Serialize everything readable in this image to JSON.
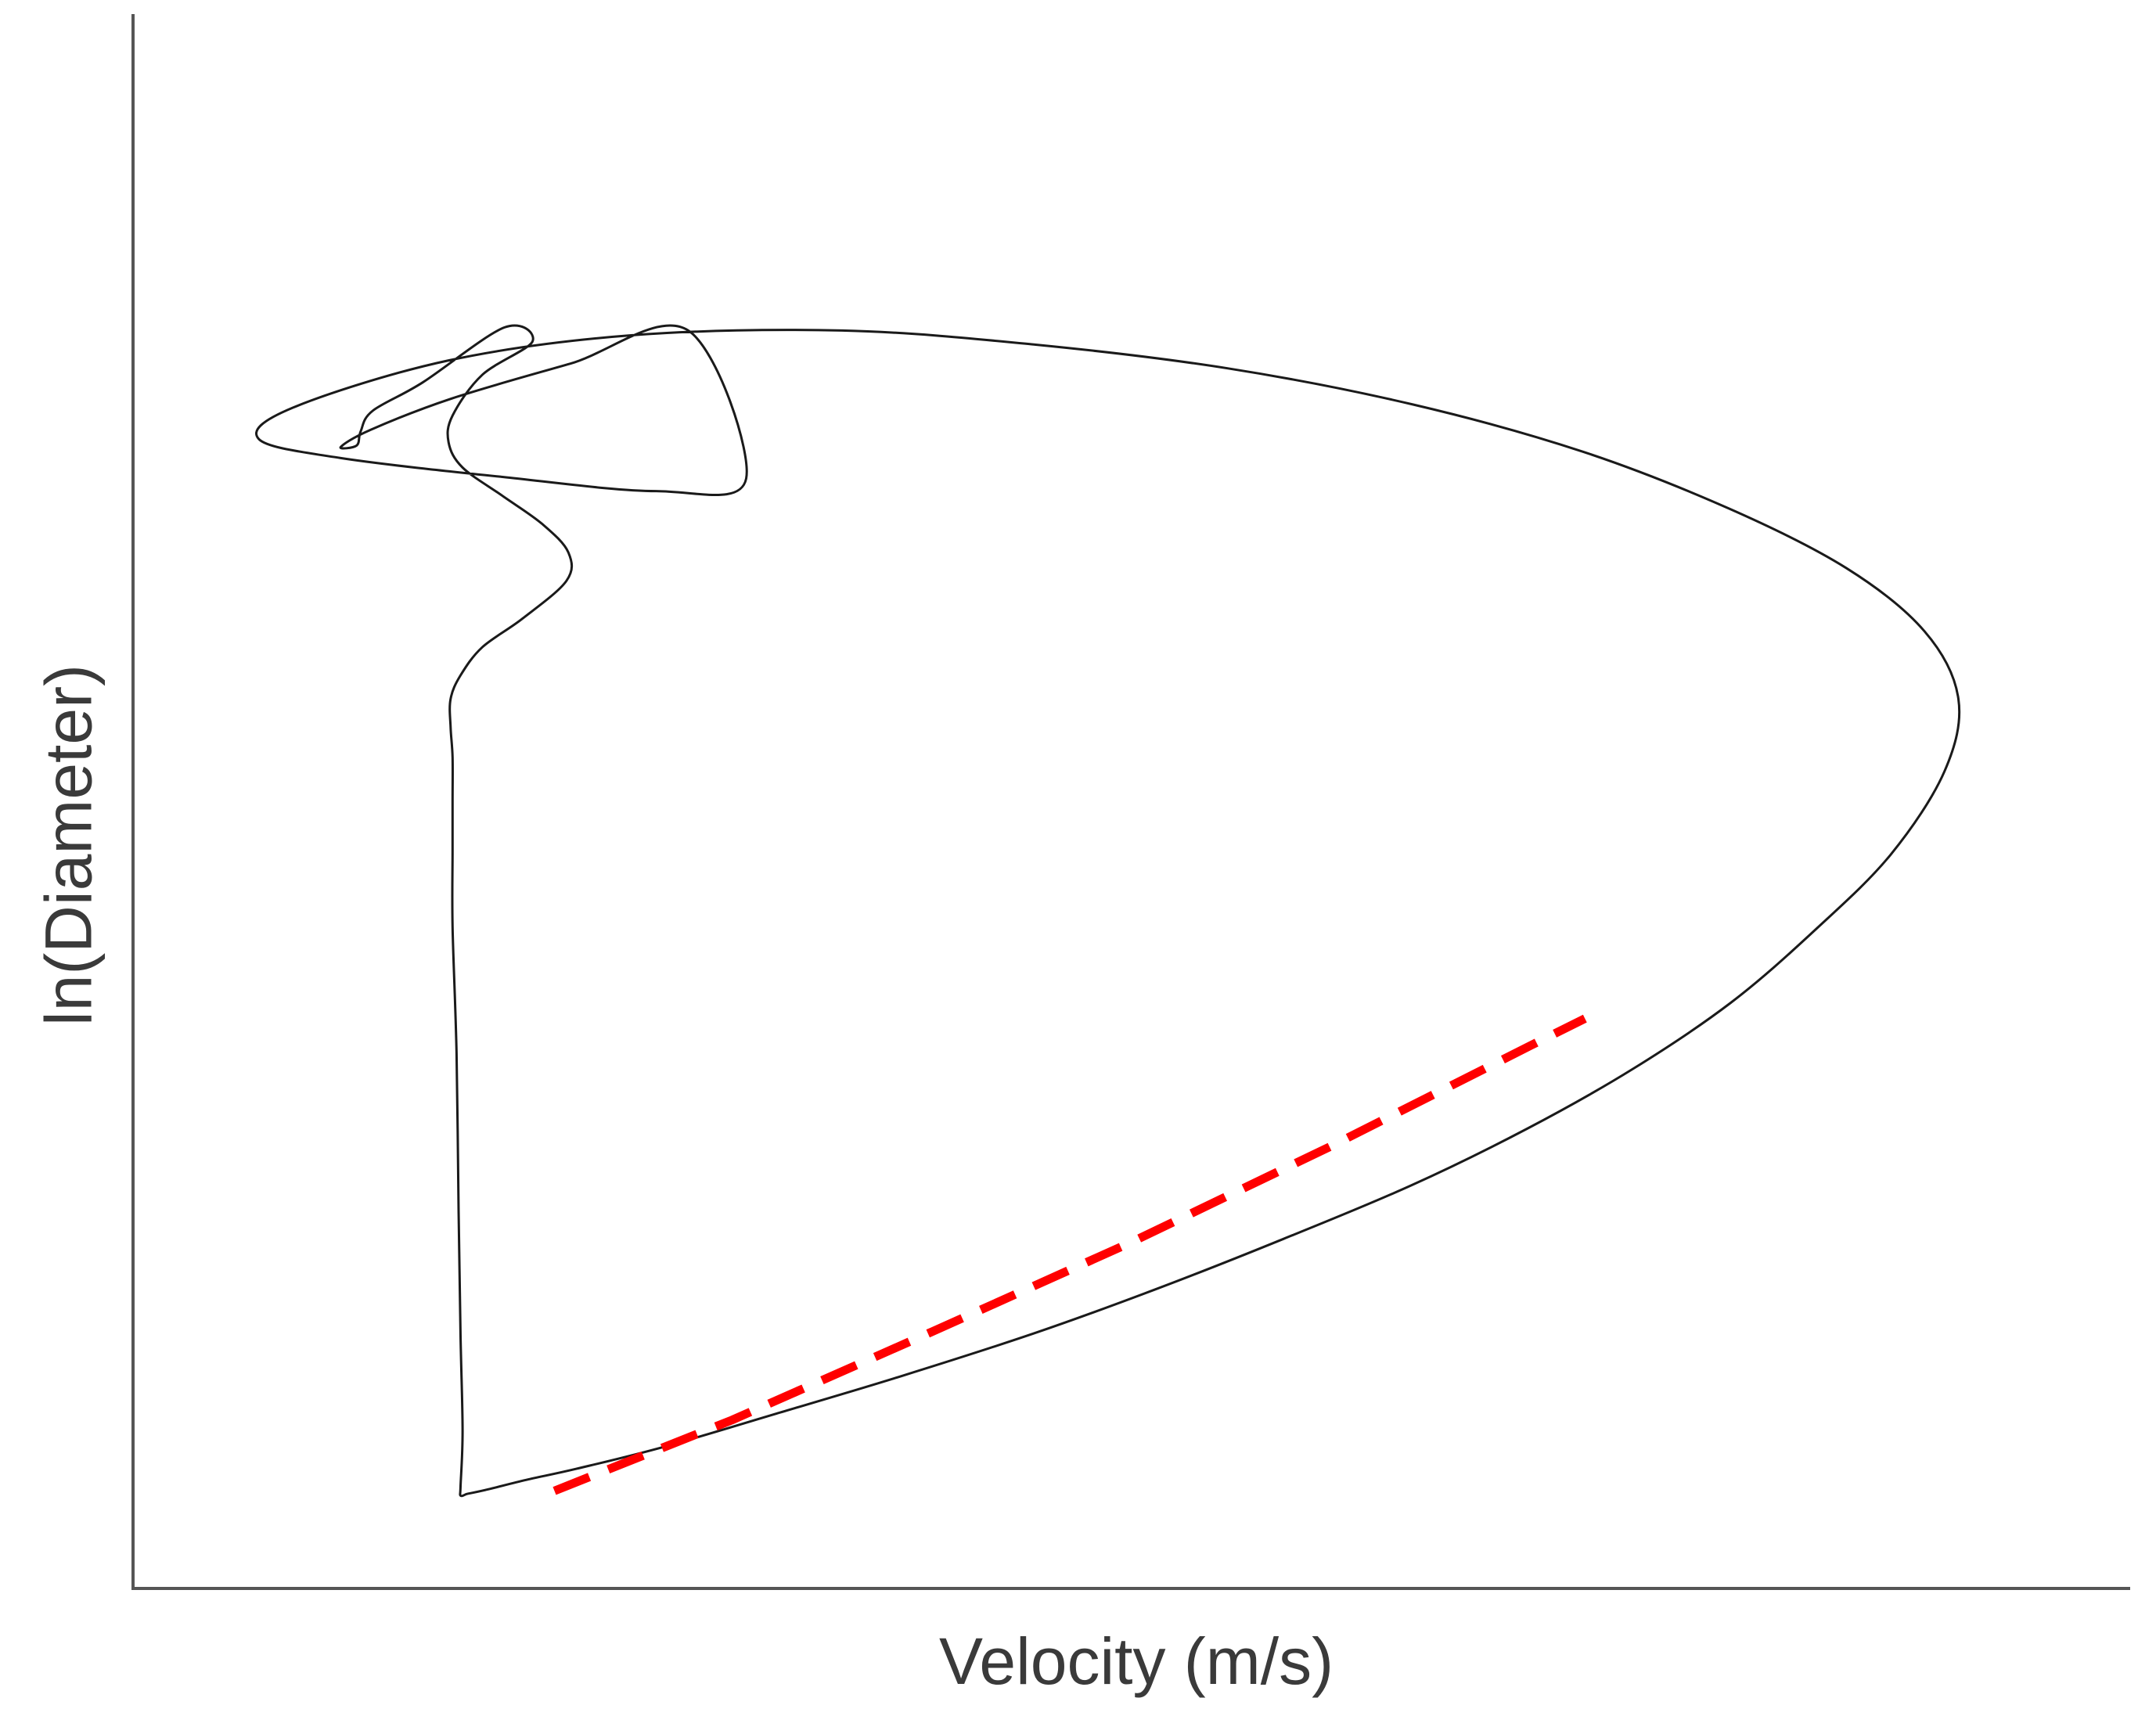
{
  "chart_data": {
    "type": "line",
    "xlabel": "Velocity (m/s)",
    "ylabel": "ln(Diameter)",
    "x_ticks": [],
    "y_ticks": [],
    "xlim": [
      0,
      1000
    ],
    "ylim": [
      0,
      1000
    ],
    "grid": false,
    "legend": "none",
    "colors": {
      "curve": "#1a1a1a",
      "fit_line": "#ff0000",
      "axes": "#555555"
    },
    "series": [
      {
        "style": "solid",
        "points": [
          [
            167,
            60
          ],
          [
            178,
            63
          ],
          [
            197,
            69
          ],
          [
            222,
            76
          ],
          [
            266,
            90
          ],
          [
            322,
            111
          ],
          [
            385,
            135
          ],
          [
            451,
            162
          ],
          [
            512,
            190
          ],
          [
            576,
            222
          ],
          [
            640,
            256
          ],
          [
            698,
            292
          ],
          [
            751,
            330
          ],
          [
            800,
            372
          ],
          [
            842,
            418
          ],
          [
            880,
            466
          ],
          [
            907,
            519
          ],
          [
            914,
            565
          ],
          [
            897,
            608
          ],
          [
            858,
            648
          ],
          [
            799,
            686
          ],
          [
            726,
            722
          ],
          [
            641,
            752
          ],
          [
            548,
            775
          ],
          [
            452,
            790
          ],
          [
            355,
            799
          ],
          [
            250,
            796
          ],
          [
            158,
            780
          ],
          [
            80,
            750
          ],
          [
            63,
            730
          ],
          [
            104,
            718
          ],
          [
            185,
            706
          ],
          [
            262,
            697
          ],
          [
            307,
            705
          ],
          [
            278,
            799
          ],
          [
            219,
            778
          ],
          [
            160,
            756
          ],
          [
            119,
            736
          ],
          [
            104,
            725
          ],
          [
            112,
            726
          ],
          [
            114,
            735
          ],
          [
            120,
            748
          ],
          [
            145,
            766
          ],
          [
            186,
            801
          ],
          [
            200,
            792
          ],
          [
            175,
            771
          ],
          [
            160,
            745
          ],
          [
            158,
            728
          ],
          [
            165,
            712
          ],
          [
            185,
            694
          ],
          [
            205,
            676
          ],
          [
            218,
            658
          ],
          [
            217,
            640
          ],
          [
            195,
            616
          ],
          [
            175,
            598
          ],
          [
            164,
            580
          ],
          [
            159,
            565
          ],
          [
            159,
            547
          ],
          [
            160,
            528
          ],
          [
            160,
            500
          ],
          [
            160,
            468
          ],
          [
            160,
            420
          ],
          [
            162,
            340
          ],
          [
            163,
            240
          ],
          [
            164,
            160
          ],
          [
            165,
            100
          ],
          [
            164,
            65
          ],
          [
            164,
            59
          ],
          [
            167,
            60
          ]
        ]
      },
      {
        "style": "dashed",
        "points": [
          [
            211,
            62
          ],
          [
            300,
            107
          ],
          [
            400,
            163
          ],
          [
            500,
            220
          ],
          [
            600,
            281
          ],
          [
            700,
            345
          ],
          [
            727,
            362
          ]
        ]
      }
    ]
  }
}
